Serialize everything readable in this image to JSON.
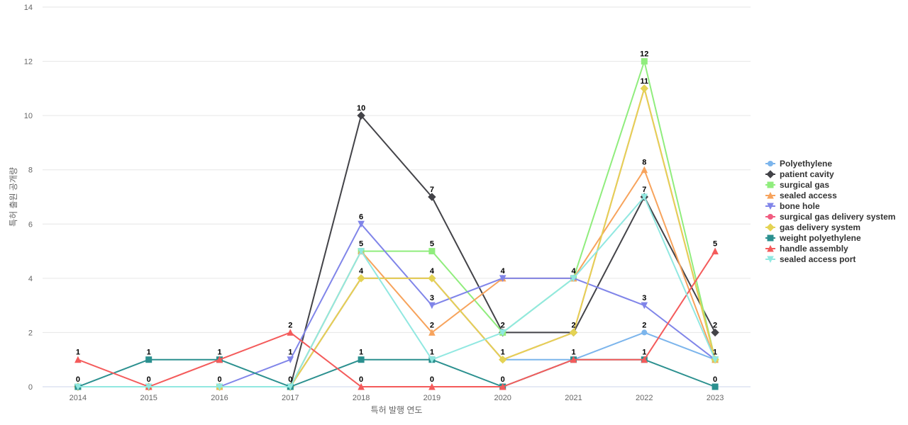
{
  "chart_data": {
    "type": "line",
    "x": [
      "2014",
      "2015",
      "2016",
      "2017",
      "2018",
      "2019",
      "2020",
      "2021",
      "2022",
      "2023"
    ],
    "xlabel": "특허 발행 연도",
    "ylabel": "특허 출원 공개량",
    "ylim": [
      0,
      14
    ],
    "yticks": [
      "0",
      "2",
      "4",
      "6",
      "8",
      "10",
      "12",
      "14"
    ],
    "grid": "horizontal",
    "legend_position": "right",
    "series": [
      {
        "name": "Polyethylene",
        "color": "#7cb5ec",
        "marker": "circle",
        "values": [
          0,
          0,
          0,
          0,
          4,
          4,
          1,
          1,
          2,
          1
        ]
      },
      {
        "name": "patient cavity",
        "color": "#434348",
        "marker": "diamond",
        "values": [
          0,
          0,
          0,
          0,
          10,
          7,
          2,
          2,
          7,
          2
        ]
      },
      {
        "name": "surgical gas",
        "color": "#90ed7d",
        "marker": "square",
        "values": [
          0,
          0,
          0,
          0,
          5,
          5,
          2,
          4,
          12,
          1
        ]
      },
      {
        "name": "sealed access",
        "color": "#f7a35c",
        "marker": "triangle",
        "values": [
          0,
          0,
          0,
          0,
          5,
          2,
          4,
          4,
          8,
          1
        ]
      },
      {
        "name": "bone hole",
        "color": "#8085e9",
        "marker": "triangle-down",
        "values": [
          0,
          0,
          0,
          1,
          6,
          3,
          4,
          4,
          3,
          1
        ]
      },
      {
        "name": "surgical gas delivery system",
        "color": "#f15c80",
        "marker": "circle",
        "values": [
          0,
          0,
          0,
          0,
          4,
          4,
          1,
          2,
          11,
          1
        ]
      },
      {
        "name": "gas delivery system",
        "color": "#e4d354",
        "marker": "diamond",
        "values": [
          0,
          0,
          0,
          0,
          4,
          4,
          1,
          2,
          11,
          1
        ]
      },
      {
        "name": "weight polyethylene",
        "color": "#2b908f",
        "marker": "square",
        "values": [
          0,
          1,
          1,
          0,
          1,
          1,
          0,
          1,
          1,
          0
        ]
      },
      {
        "name": "handle assembly",
        "color": "#f45b5b",
        "marker": "triangle",
        "values": [
          1,
          0,
          1,
          2,
          0,
          0,
          0,
          1,
          1,
          5
        ]
      },
      {
        "name": "sealed access port",
        "color": "#91e8e1",
        "marker": "triangle-down",
        "values": [
          0,
          0,
          0,
          0,
          5,
          1,
          2,
          4,
          7,
          1
        ]
      }
    ],
    "data_labels": [
      {
        "x": "2014",
        "value": "1",
        "series": "handle assembly"
      },
      {
        "x": "2014",
        "value": "0",
        "series": "weight polyethylene"
      },
      {
        "x": "2015",
        "value": "1",
        "series": "weight polyethylene"
      },
      {
        "x": "2015",
        "value": "0",
        "series": "handle assembly"
      },
      {
        "x": "2016",
        "value": "1",
        "series": "weight polyethylene"
      },
      {
        "x": "2016",
        "value": "0",
        "series": "bone hole"
      },
      {
        "x": "2017",
        "value": "2",
        "series": "handle assembly"
      },
      {
        "x": "2017",
        "value": "1",
        "series": "bone hole"
      },
      {
        "x": "2017",
        "value": "0",
        "series": "weight polyethylene"
      },
      {
        "x": "2018",
        "value": "10",
        "series": "patient cavity"
      },
      {
        "x": "2018",
        "value": "6",
        "series": "bone hole"
      },
      {
        "x": "2018",
        "value": "5",
        "series": "surgical gas"
      },
      {
        "x": "2018",
        "value": "4",
        "series": "gas delivery system"
      },
      {
        "x": "2018",
        "value": "1",
        "series": "weight polyethylene"
      },
      {
        "x": "2018",
        "value": "0",
        "series": "handle assembly"
      },
      {
        "x": "2019",
        "value": "7",
        "series": "patient cavity"
      },
      {
        "x": "2019",
        "value": "5",
        "series": "surgical gas"
      },
      {
        "x": "2019",
        "value": "4",
        "series": "gas delivery system"
      },
      {
        "x": "2019",
        "value": "3",
        "series": "bone hole"
      },
      {
        "x": "2019",
        "value": "2",
        "series": "sealed access"
      },
      {
        "x": "2019",
        "value": "1",
        "series": "sealed access port"
      },
      {
        "x": "2019",
        "value": "0",
        "series": "handle assembly"
      },
      {
        "x": "2020",
        "value": "4",
        "series": "bone hole"
      },
      {
        "x": "2020",
        "value": "2",
        "series": "patient cavity"
      },
      {
        "x": "2020",
        "value": "1",
        "series": "gas delivery system"
      },
      {
        "x": "2020",
        "value": "0",
        "series": "handle assembly"
      },
      {
        "x": "2021",
        "value": "4",
        "series": "bone hole"
      },
      {
        "x": "2021",
        "value": "2",
        "series": "patient cavity"
      },
      {
        "x": "2021",
        "value": "1",
        "series": "handle assembly"
      },
      {
        "x": "2022",
        "value": "12",
        "series": "surgical gas"
      },
      {
        "x": "2022",
        "value": "11",
        "series": "gas delivery system"
      },
      {
        "x": "2022",
        "value": "8",
        "series": "sealed access"
      },
      {
        "x": "2022",
        "value": "7",
        "series": "patient cavity"
      },
      {
        "x": "2022",
        "value": "3",
        "series": "bone hole"
      },
      {
        "x": "2022",
        "value": "2",
        "series": "Polyethylene"
      },
      {
        "x": "2022",
        "value": "1",
        "series": "handle assembly"
      },
      {
        "x": "2023",
        "value": "5",
        "series": "handle assembly"
      },
      {
        "x": "2023",
        "value": "2",
        "series": "patient cavity"
      },
      {
        "x": "2023",
        "value": "1",
        "series": "Polyethylene"
      },
      {
        "x": "2023",
        "value": "0",
        "series": "weight polyethylene"
      }
    ]
  }
}
